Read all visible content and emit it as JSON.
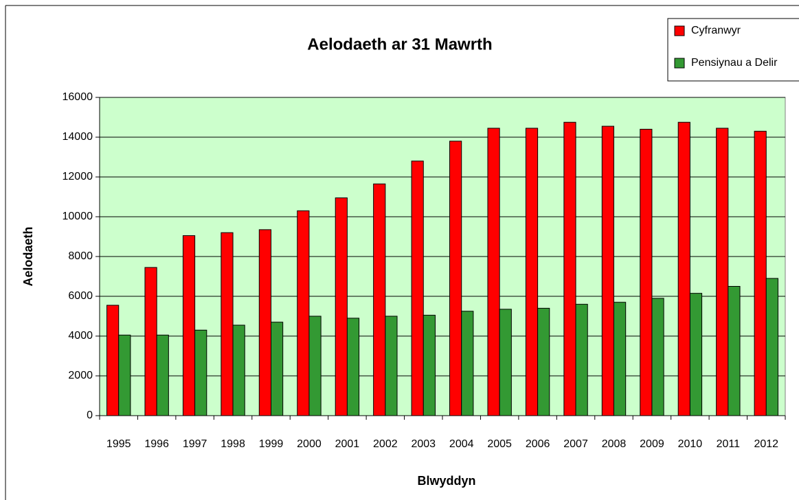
{
  "chart_data": {
    "type": "bar",
    "title": "Aelodaeth ar 31 Mawrth",
    "xlabel": "Blwyddyn",
    "ylabel": "Aelodaeth",
    "categories": [
      "1995",
      "1996",
      "1997",
      "1998",
      "1999",
      "2000",
      "2001",
      "2002",
      "2003",
      "2004",
      "2005",
      "2006",
      "2007",
      "2008",
      "2009",
      "2010",
      "2011",
      "2012"
    ],
    "series": [
      {
        "name": "Cyfranwyr",
        "color": "#ff0000",
        "values": [
          5550,
          7450,
          9050,
          9200,
          9350,
          10300,
          10950,
          11650,
          12800,
          13800,
          14450,
          14450,
          14750,
          14550,
          14400,
          14750,
          14450,
          14300
        ]
      },
      {
        "name": "Pensiynau a Delir",
        "color": "#339933",
        "values": [
          4050,
          4050,
          4300,
          4550,
          4700,
          5000,
          4900,
          5000,
          5050,
          5250,
          5350,
          5400,
          5600,
          5700,
          5900,
          6150,
          6500,
          6900
        ]
      }
    ],
    "ylim": [
      0,
      16000
    ],
    "yticks": [
      0,
      2000,
      4000,
      6000,
      8000,
      10000,
      12000,
      14000,
      16000
    ],
    "grid": true,
    "legend": "top-right",
    "plot_background": "#ccffcc"
  }
}
